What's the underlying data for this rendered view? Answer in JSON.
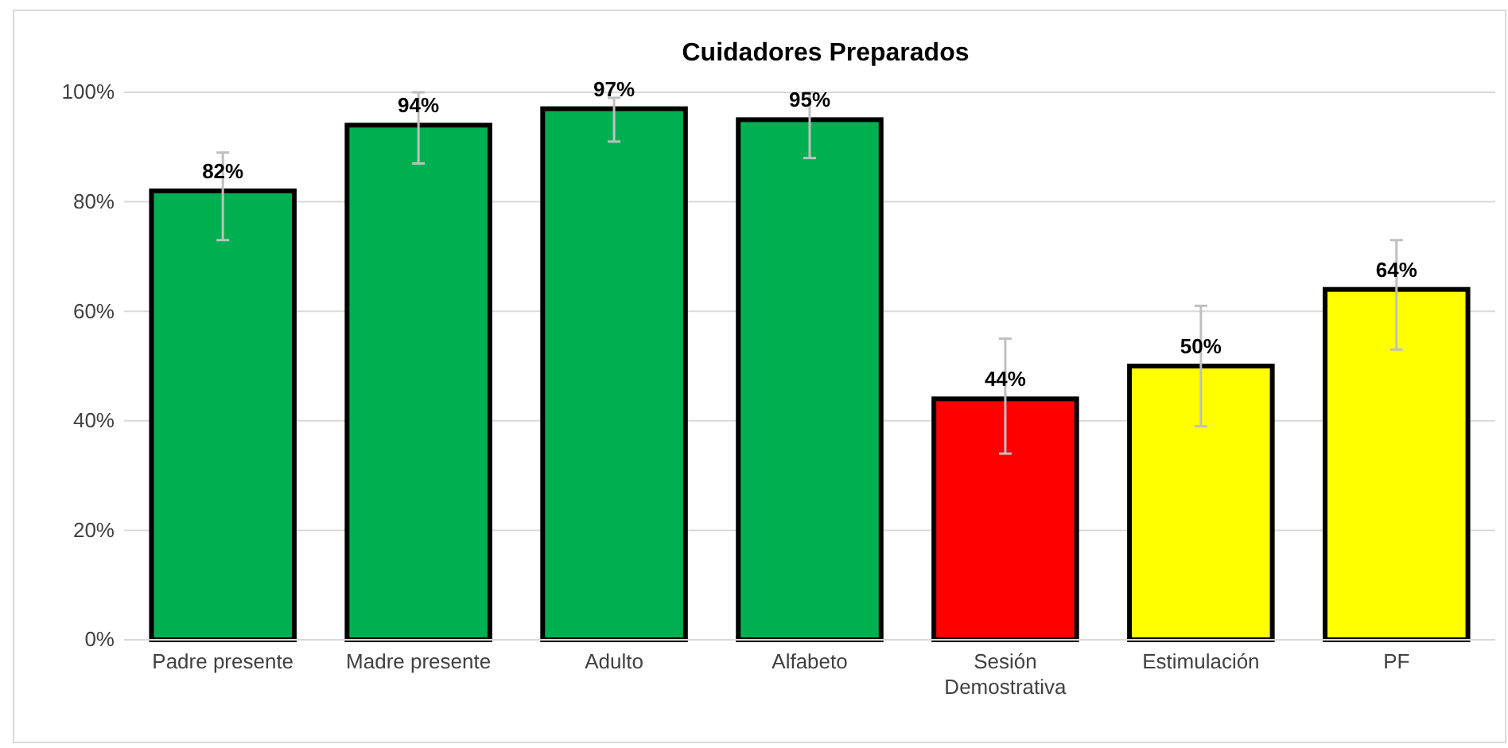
{
  "chart_data": {
    "type": "bar",
    "title": "Cuidadores Preparados",
    "categories": [
      "Padre presente",
      "Madre presente",
      "Adulto",
      "Alfabeto",
      "Sesión Demostrativa",
      "Estimulación",
      "PF"
    ],
    "values": [
      82,
      94,
      97,
      95,
      44,
      50,
      64
    ],
    "colors": [
      "#00b050",
      "#00b050",
      "#00b050",
      "#00b050",
      "#ff0000",
      "#ffff00",
      "#ffff00"
    ],
    "value_labels": [
      "82%",
      "94%",
      "97%",
      "95%",
      "44%",
      "50%",
      "64%"
    ],
    "errors": [
      [
        73,
        89
      ],
      [
        87,
        100
      ],
      [
        91,
        99
      ],
      [
        88,
        100
      ],
      [
        34,
        55
      ],
      [
        39,
        61
      ],
      [
        53,
        73
      ]
    ],
    "ylim": [
      0,
      100
    ],
    "yticks": [
      {
        "value": 0,
        "label": "0%"
      },
      {
        "value": 20,
        "label": "20%"
      },
      {
        "value": 40,
        "label": "40%"
      },
      {
        "value": 60,
        "label": "60%"
      },
      {
        "value": 80,
        "label": "80%"
      },
      {
        "value": 100,
        "label": "100%"
      }
    ],
    "grid": "y"
  }
}
